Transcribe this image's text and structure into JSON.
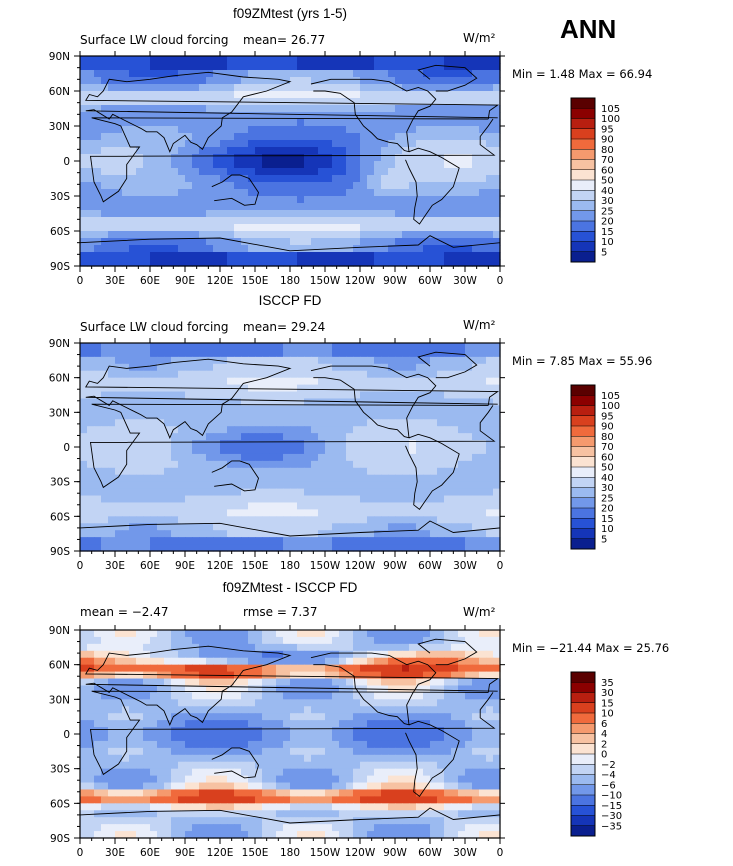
{
  "header": {
    "season": "ANN"
  },
  "colors": {
    "ocean_cold": "#1437c8",
    "ocean_mid": "#8fb4f0",
    "warm": "#f4d0b8",
    "land_outline": "#000000"
  },
  "chart_data": [
    {
      "type": "heatmap",
      "title": "f09ZMtest (yrs 1-5)",
      "left_label": "Surface LW cloud forcing",
      "stat1": "mean=   26.77",
      "units": "W/m²",
      "minmax": "Min =    1.48 Max =  66.94",
      "xlabel": "",
      "ylabel": "",
      "x_ticks": [
        "0",
        "30E",
        "60E",
        "90E",
        "120E",
        "150E",
        "180",
        "150W",
        "120W",
        "90W",
        "60W",
        "30W",
        "0"
      ],
      "y_ticks": [
        "90N",
        "60N",
        "30N",
        "0",
        "30S",
        "60S",
        "90S"
      ],
      "colorbar": {
        "levels": [
          "105",
          "100",
          "95",
          "90",
          "80",
          "70",
          "60",
          "50",
          "40",
          "30",
          "25",
          "20",
          "15",
          "10",
          "5"
        ],
        "colors": [
          "#5a0000",
          "#8b0000",
          "#b81f10",
          "#d9401e",
          "#f06a3c",
          "#f59a6e",
          "#f7c2a2",
          "#fbe3d2",
          "#e9eefa",
          "#c2d4f4",
          "#9bbaf0",
          "#7298ea",
          "#4b74e1",
          "#2752d6",
          "#1535b8",
          "#0a1f8f"
        ],
        "type": "full"
      },
      "field": "model"
    },
    {
      "type": "heatmap",
      "title": "ISCCP FD",
      "left_label": "Surface LW cloud forcing",
      "stat1": "mean=   29.24",
      "units": "W/m²",
      "minmax": "Min =    7.85 Max =  55.96",
      "xlabel": "",
      "ylabel": "",
      "x_ticks": [
        "0",
        "30E",
        "60E",
        "90E",
        "120E",
        "150E",
        "180",
        "150W",
        "120W",
        "90W",
        "60W",
        "30W",
        "0"
      ],
      "y_ticks": [
        "90N",
        "60N",
        "30N",
        "0",
        "30S",
        "60S",
        "90S"
      ],
      "colorbar": {
        "levels": [
          "105",
          "100",
          "95",
          "90",
          "80",
          "70",
          "60",
          "50",
          "40",
          "30",
          "25",
          "20",
          "15",
          "10",
          "5"
        ],
        "colors": [
          "#5a0000",
          "#8b0000",
          "#b81f10",
          "#d9401e",
          "#f06a3c",
          "#f59a6e",
          "#f7c2a2",
          "#fbe3d2",
          "#e9eefa",
          "#c2d4f4",
          "#9bbaf0",
          "#7298ea",
          "#4b74e1",
          "#2752d6",
          "#1535b8",
          "#0a1f8f"
        ],
        "type": "full"
      },
      "field": "obs"
    },
    {
      "type": "heatmap",
      "title": "f09ZMtest - ISCCP FD",
      "left_label": "mean =   −2.47",
      "stat1": "rmse =    7.37",
      "units": "W/m²",
      "minmax": "Min = −21.44 Max =  25.76",
      "xlabel": "",
      "ylabel": "",
      "x_ticks": [
        "0",
        "30E",
        "60E",
        "90E",
        "120E",
        "150E",
        "180",
        "150W",
        "120W",
        "90W",
        "60W",
        "30W",
        "0"
      ],
      "y_ticks": [
        "90N",
        "60N",
        "30N",
        "0",
        "30S",
        "60S",
        "90S"
      ],
      "colorbar": {
        "levels": [
          "35",
          "30",
          "15",
          "10",
          "6",
          "4",
          "2",
          "0",
          "−2",
          "−4",
          "−6",
          "−10",
          "−15",
          "−30",
          "−35"
        ],
        "colors": [
          "#5a0000",
          "#8b0000",
          "#b81f10",
          "#d9401e",
          "#f06a3c",
          "#f59a6e",
          "#f7c2a2",
          "#fbe3d2",
          "#e9eefa",
          "#c2d4f4",
          "#9bbaf0",
          "#7298ea",
          "#4b74e1",
          "#2752d6",
          "#1535b8",
          "#0a1f8f"
        ],
        "type": "diff"
      },
      "field": "diff"
    }
  ]
}
